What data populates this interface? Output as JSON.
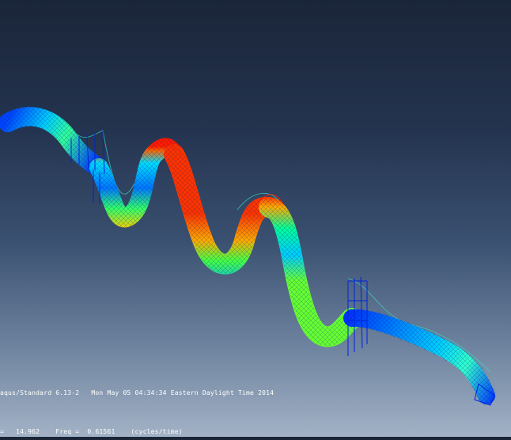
{
  "viewport": {
    "product_line": "aqus/Standard 6.13-2   Mon May 05 04:34:34 Eastern Daylight Time 2014",
    "freq_line": "=   14.962    Freq =  0.61561    (cycles/time)"
  },
  "colors": {
    "background_top": "#1a2538",
    "background_bottom": "#a3b2c6",
    "contour": [
      "#0033ff",
      "#00aaff",
      "#00ffcc",
      "#66ff00",
      "#ffee00",
      "#ff8800",
      "#ff1a00"
    ]
  }
}
